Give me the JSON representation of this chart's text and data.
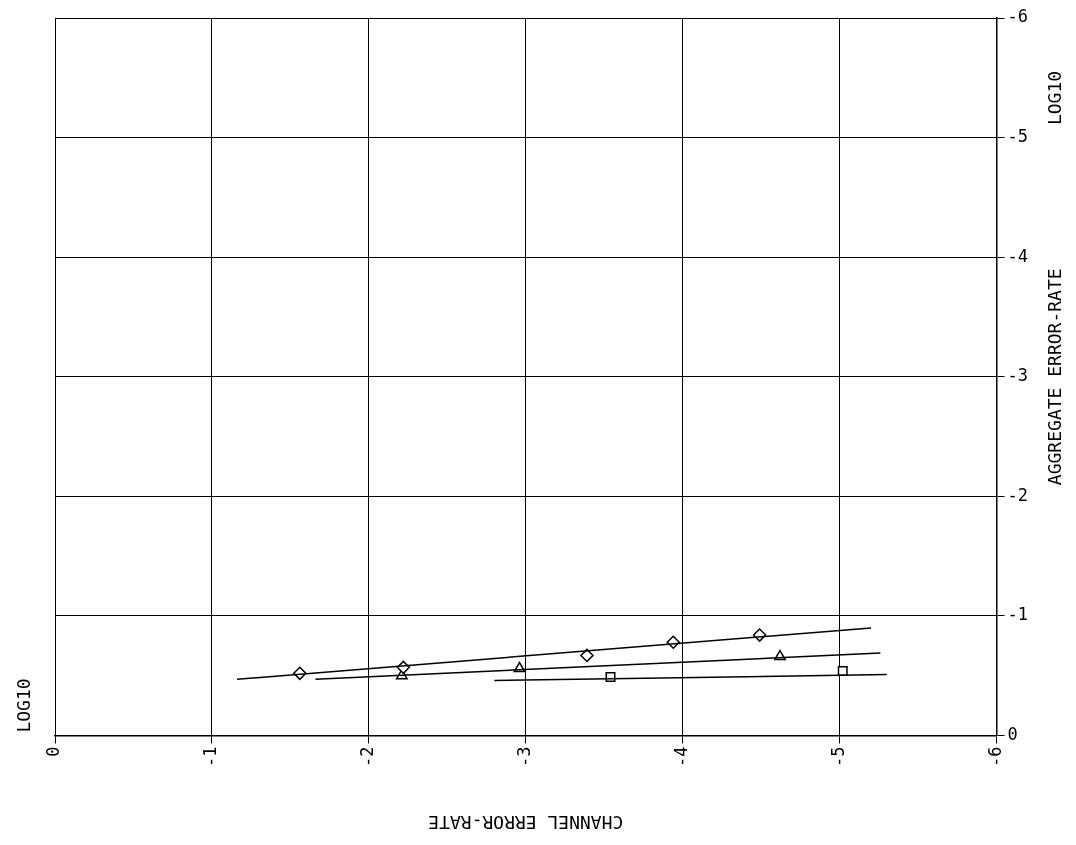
{
  "chart_data": {
    "type": "scatter",
    "xlabel": "CHANNEL ERROR-RATE",
    "ylabel": "AGGREGATE ERROR-RATE",
    "annotations": [
      "LOG10",
      "LOG10"
    ],
    "xlim": [
      0,
      -6
    ],
    "xticks": [
      0,
      -1,
      -2,
      -3,
      -4,
      -5,
      -6
    ],
    "ylim": [
      0,
      -6
    ],
    "yticks": [
      0,
      -1,
      -2,
      -3,
      -4,
      -5,
      -6
    ],
    "grid": true,
    "legend": false,
    "series": [
      {
        "type": "line",
        "color": "#000000",
        "marker": "none",
        "x": [
          -1.16,
          -5.2
        ],
        "values": [
          -0.47,
          -0.9
        ]
      },
      {
        "type": "line",
        "color": "#000000",
        "marker": "none",
        "x": [
          -1.66,
          -5.26
        ],
        "values": [
          -0.47,
          -0.69
        ]
      },
      {
        "type": "line",
        "color": "#000000",
        "marker": "none",
        "x": [
          -2.8,
          -5.3
        ],
        "values": [
          -0.46,
          -0.51
        ]
      },
      {
        "color": "#000000",
        "marker": "diamond",
        "x": [
          -1.56,
          -2.22,
          -3.39,
          -3.94,
          -4.49
        ],
        "values": [
          -0.52,
          -0.57,
          -0.67,
          -0.78,
          -0.84
        ]
      },
      {
        "color": "#000000",
        "marker": "triangle",
        "x": [
          -2.21,
          -2.96,
          -4.62
        ],
        "values": [
          -0.5,
          -0.56,
          -0.66
        ]
      },
      {
        "color": "#000000",
        "marker": "square",
        "x": [
          -3.54,
          -5.02
        ],
        "values": [
          -0.49,
          -0.54
        ]
      }
    ]
  }
}
